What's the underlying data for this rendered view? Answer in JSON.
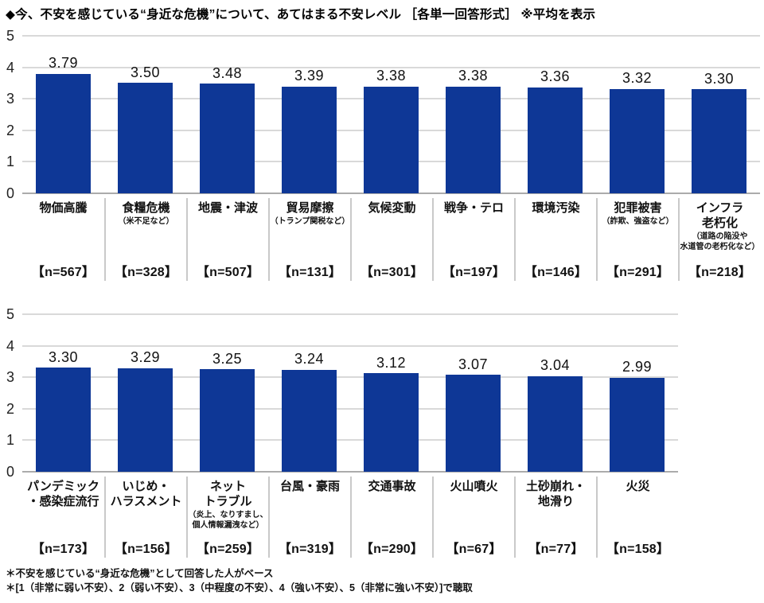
{
  "title": "◆今、不安を感じている“身近な危機”について、あてはまる不安レベル ［各単一回答形式］ ※平均を表示",
  "footnotes": {
    "line1": "＊不安を感じている“身近な危機”として回答した人がベース",
    "line2": "＊[1（非常に弱い不安）、2（弱い不安）、3（中程度の不安）、4（強い不安）、5（非常に強い不安）]で聴取"
  },
  "colors": {
    "bar": "#0e3796",
    "gridline": "#d9d9d9",
    "zero_axis": "#ababab",
    "divider": "#c9c9c9"
  },
  "chart_data": [
    {
      "type": "bar",
      "title": "不安レベル平均（上段）",
      "xlabel": "",
      "ylabel": "",
      "ylim": [
        0,
        5
      ],
      "yticks": [
        5,
        4,
        3,
        2,
        1,
        0
      ],
      "grid": true,
      "legend": "none",
      "values": [
        3.79,
        3.5,
        3.48,
        3.39,
        3.38,
        3.38,
        3.36,
        3.32,
        3.3
      ],
      "value_labels": [
        "3.79",
        "3.50",
        "3.48",
        "3.39",
        "3.38",
        "3.38",
        "3.36",
        "3.32",
        "3.30"
      ],
      "categories": [
        {
          "name": "物価高騰",
          "note": "",
          "n": "【n=567】"
        },
        {
          "name": "食糧危機",
          "note": "（米不足など）",
          "n": "【n=328】"
        },
        {
          "name": "地震・津波",
          "note": "",
          "n": "【n=507】"
        },
        {
          "name": "貿易摩擦",
          "note": "（トランプ関税など）",
          "n": "【n=131】"
        },
        {
          "name": "気候変動",
          "note": "",
          "n": "【n=301】"
        },
        {
          "name": "戦争・テロ",
          "note": "",
          "n": "【n=197】"
        },
        {
          "name": "環境汚染",
          "note": "",
          "n": "【n=146】"
        },
        {
          "name": "犯罪被害",
          "note": "（詐欺、強盗など）",
          "n": "【n=291】"
        },
        {
          "name": "インフラ\n老朽化",
          "note": "（道路の陥没や\n水道管の老朽化など）",
          "n": "【n=218】"
        }
      ]
    },
    {
      "type": "bar",
      "title": "不安レベル平均（下段）",
      "xlabel": "",
      "ylabel": "",
      "ylim": [
        0,
        5
      ],
      "yticks": [
        5,
        4,
        3,
        2,
        1,
        0
      ],
      "grid": true,
      "legend": "none",
      "values": [
        3.3,
        3.29,
        3.25,
        3.24,
        3.12,
        3.07,
        3.04,
        2.99
      ],
      "value_labels": [
        "3.30",
        "3.29",
        "3.25",
        "3.24",
        "3.12",
        "3.07",
        "3.04",
        "2.99"
      ],
      "categories": [
        {
          "name": "パンデミック\n・感染症流行",
          "note": "",
          "n": "【n=173】"
        },
        {
          "name": "いじめ・\nハラスメント",
          "note": "",
          "n": "【n=156】"
        },
        {
          "name": "ネット\nトラブル",
          "note": "（炎上、なりすまし、\n個人情報漏洩など）",
          "n": "【n=259】"
        },
        {
          "name": "台風・豪雨",
          "note": "",
          "n": "【n=319】"
        },
        {
          "name": "交通事故",
          "note": "",
          "n": "【n=290】"
        },
        {
          "name": "火山噴火",
          "note": "",
          "n": "【n=67】"
        },
        {
          "name": "土砂崩れ・\n地滑り",
          "note": "",
          "n": "【n=77】"
        },
        {
          "name": "火災",
          "note": "",
          "n": "【n=158】"
        }
      ]
    }
  ]
}
